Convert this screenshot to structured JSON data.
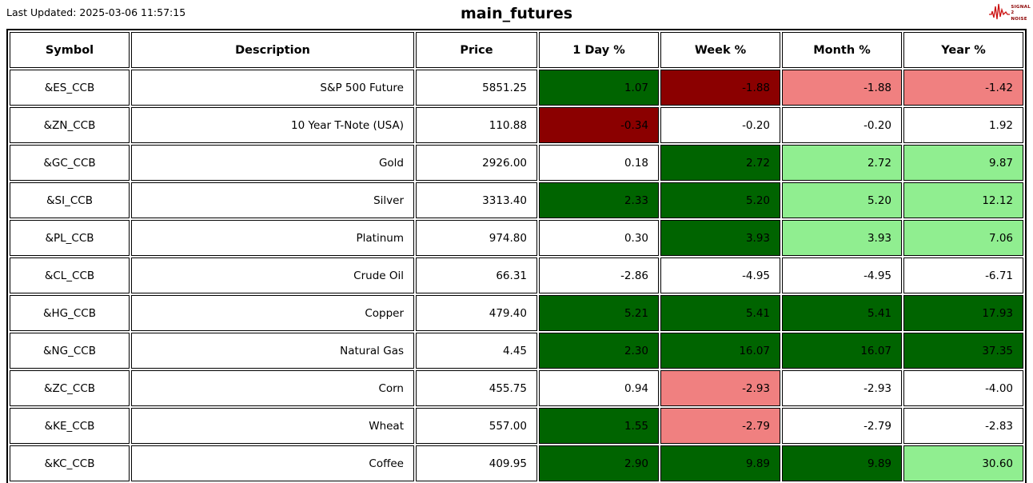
{
  "header": {
    "last_updated": "Last Updated: 2025-03-06 11:57:15",
    "title": "main_futures",
    "logo": {
      "line1": "SIGNAL",
      "line2": "2",
      "line3": "NOISE"
    }
  },
  "colors": {
    "dark_green": "#006400",
    "light_green": "#90EE90",
    "dark_red": "#8B0000",
    "light_red": "#F08080",
    "white": "#FFFFFF"
  },
  "chart_data": {
    "type": "table",
    "title": "main_futures",
    "columns": [
      "Symbol",
      "Description",
      "Price",
      "1 Day %",
      "Week %",
      "Month %",
      "Year %"
    ],
    "rows": [
      {
        "symbol": "&ES_CCB",
        "description": "S&P 500 Future",
        "price": "5851.25",
        "pct": [
          {
            "value": "1.07",
            "color": "dark_green"
          },
          {
            "value": "-1.88",
            "color": "dark_red"
          },
          {
            "value": "-1.88",
            "color": "light_red"
          },
          {
            "value": "-1.42",
            "color": "light_red"
          }
        ]
      },
      {
        "symbol": "&ZN_CCB",
        "description": "10 Year T-Note (USA)",
        "price": "110.88",
        "pct": [
          {
            "value": "-0.34",
            "color": "dark_red"
          },
          {
            "value": "-0.20",
            "color": "white"
          },
          {
            "value": "-0.20",
            "color": "white"
          },
          {
            "value": "1.92",
            "color": "white"
          }
        ]
      },
      {
        "symbol": "&GC_CCB",
        "description": "Gold",
        "price": "2926.00",
        "pct": [
          {
            "value": "0.18",
            "color": "white"
          },
          {
            "value": "2.72",
            "color": "dark_green"
          },
          {
            "value": "2.72",
            "color": "light_green"
          },
          {
            "value": "9.87",
            "color": "light_green"
          }
        ]
      },
      {
        "symbol": "&SI_CCB",
        "description": "Silver",
        "price": "3313.40",
        "pct": [
          {
            "value": "2.33",
            "color": "dark_green"
          },
          {
            "value": "5.20",
            "color": "dark_green"
          },
          {
            "value": "5.20",
            "color": "light_green"
          },
          {
            "value": "12.12",
            "color": "light_green"
          }
        ]
      },
      {
        "symbol": "&PL_CCB",
        "description": "Platinum",
        "price": "974.80",
        "pct": [
          {
            "value": "0.30",
            "color": "white"
          },
          {
            "value": "3.93",
            "color": "dark_green"
          },
          {
            "value": "3.93",
            "color": "light_green"
          },
          {
            "value": "7.06",
            "color": "light_green"
          }
        ]
      },
      {
        "symbol": "&CL_CCB",
        "description": "Crude Oil",
        "price": "66.31",
        "pct": [
          {
            "value": "-2.86",
            "color": "white"
          },
          {
            "value": "-4.95",
            "color": "white"
          },
          {
            "value": "-4.95",
            "color": "white"
          },
          {
            "value": "-6.71",
            "color": "white"
          }
        ]
      },
      {
        "symbol": "&HG_CCB",
        "description": "Copper",
        "price": "479.40",
        "pct": [
          {
            "value": "5.21",
            "color": "dark_green"
          },
          {
            "value": "5.41",
            "color": "dark_green"
          },
          {
            "value": "5.41",
            "color": "dark_green"
          },
          {
            "value": "17.93",
            "color": "dark_green"
          }
        ]
      },
      {
        "symbol": "&NG_CCB",
        "description": "Natural Gas",
        "price": "4.45",
        "pct": [
          {
            "value": "2.30",
            "color": "dark_green"
          },
          {
            "value": "16.07",
            "color": "dark_green"
          },
          {
            "value": "16.07",
            "color": "dark_green"
          },
          {
            "value": "37.35",
            "color": "dark_green"
          }
        ]
      },
      {
        "symbol": "&ZC_CCB",
        "description": "Corn",
        "price": "455.75",
        "pct": [
          {
            "value": "0.94",
            "color": "white"
          },
          {
            "value": "-2.93",
            "color": "light_red"
          },
          {
            "value": "-2.93",
            "color": "white"
          },
          {
            "value": "-4.00",
            "color": "white"
          }
        ]
      },
      {
        "symbol": "&KE_CCB",
        "description": "Wheat",
        "price": "557.00",
        "pct": [
          {
            "value": "1.55",
            "color": "dark_green"
          },
          {
            "value": "-2.79",
            "color": "light_red"
          },
          {
            "value": "-2.79",
            "color": "white"
          },
          {
            "value": "-2.83",
            "color": "white"
          }
        ]
      },
      {
        "symbol": "&KC_CCB",
        "description": "Coffee",
        "price": "409.95",
        "pct": [
          {
            "value": "2.90",
            "color": "dark_green"
          },
          {
            "value": "9.89",
            "color": "dark_green"
          },
          {
            "value": "9.89",
            "color": "dark_green"
          },
          {
            "value": "30.60",
            "color": "light_green"
          }
        ]
      }
    ]
  }
}
